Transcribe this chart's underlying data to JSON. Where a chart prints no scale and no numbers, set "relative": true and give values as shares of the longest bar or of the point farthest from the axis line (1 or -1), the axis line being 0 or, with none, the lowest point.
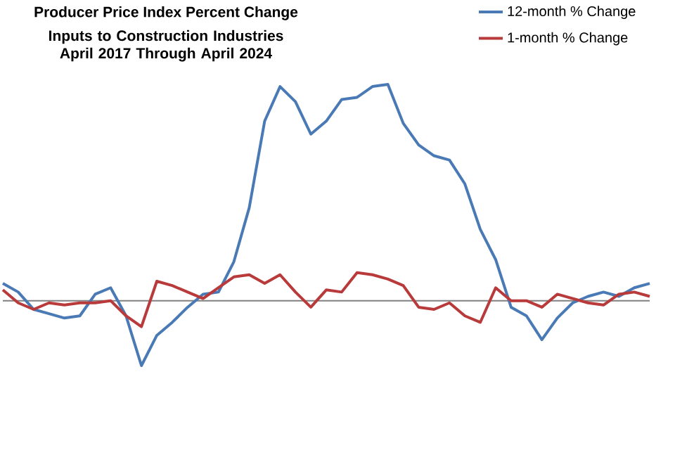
{
  "chart_data": {
    "type": "line",
    "title": "Producer Price Index Percent Change",
    "subtitle": "Inputs to Construction Industries April 2017 Through April 2024",
    "relative": true,
    "legend": "top right",
    "line_style": "solid",
    "categories": [
      null,
      null,
      null,
      null,
      null,
      null,
      null,
      null,
      null,
      null,
      null,
      null,
      null,
      null,
      null,
      null,
      null,
      null,
      null,
      null,
      null,
      null,
      null,
      null,
      null,
      null,
      null,
      null,
      null,
      null,
      null,
      null,
      null,
      null,
      null,
      null,
      null,
      null,
      null,
      null,
      null,
      null,
      null
    ],
    "series": [
      {
        "name": "12-month % Change",
        "color": "#4a7ab5",
        "values": [
          0.08,
          0.04,
          -0.04,
          -0.06,
          -0.08,
          -0.07,
          0.03,
          0.06,
          -0.07,
          -0.3,
          -0.16,
          -0.1,
          -0.03,
          0.03,
          0.04,
          0.18,
          0.43,
          0.83,
          0.99,
          0.92,
          0.77,
          0.83,
          0.93,
          0.94,
          0.99,
          1.0,
          0.82,
          0.72,
          0.67,
          0.65,
          0.54,
          0.33,
          0.19,
          -0.03,
          -0.07,
          -0.18,
          -0.08,
          -0.01,
          0.02,
          0.04,
          0.02,
          0.06,
          0.08
        ]
      },
      {
        "name": "1-month % Change",
        "color": "#b83a3a",
        "values": [
          0.05,
          -0.01,
          -0.04,
          -0.01,
          -0.02,
          -0.01,
          -0.01,
          0,
          -0.07,
          -0.12,
          0.09,
          0.07,
          0.04,
          0.01,
          0.06,
          0.11,
          0.12,
          0.08,
          0.12,
          0.04,
          -0.03,
          0.05,
          0.04,
          0.13,
          0.12,
          0.1,
          0.07,
          -0.03,
          -0.04,
          -0.01,
          -0.07,
          -0.1,
          0.06,
          0,
          0,
          -0.03,
          0.03,
          0.01,
          -0.01,
          -0.02,
          0.03,
          0.04,
          0.02
        ]
      }
    ]
  }
}
